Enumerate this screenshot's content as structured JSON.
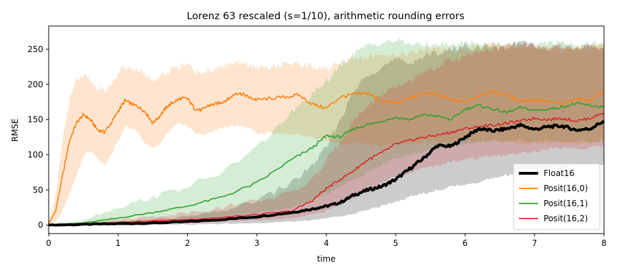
{
  "chart_data": {
    "type": "line",
    "title": "Lorenz 63 rescaled (s=1/10), arithmetic rounding errors",
    "xlabel": "time",
    "ylabel": "RMSE",
    "xlim": [
      0,
      8
    ],
    "ylim": [
      -12,
      283
    ],
    "xticks": [
      0,
      1,
      2,
      3,
      4,
      5,
      6,
      7,
      8
    ],
    "yticks": [
      0,
      50,
      100,
      150,
      200,
      250
    ],
    "grid": false,
    "legend_position": "bottom-right",
    "series": [
      {
        "name": "Float16",
        "color": "#000000",
        "linewidth": "thick",
        "x": [
          0,
          0.5,
          1,
          1.5,
          2,
          2.5,
          3,
          3.5,
          3.8,
          4,
          4.2,
          4.4,
          4.6,
          4.8,
          5,
          5.2,
          5.4,
          5.6,
          5.8,
          6,
          6.2,
          6.4,
          6.6,
          6.8,
          7,
          7.2,
          7.4,
          7.6,
          7.8,
          8
        ],
        "y": [
          0,
          1,
          2,
          3,
          5,
          8,
          12,
          18,
          23,
          27,
          32,
          43,
          50,
          55,
          65,
          80,
          95,
          113,
          112,
          125,
          137,
          134,
          137,
          142,
          136,
          140,
          141,
          135,
          137,
          148
        ],
        "band_low": [
          0,
          0,
          0,
          0,
          1,
          2,
          3,
          5,
          7,
          10,
          13,
          16,
          22,
          28,
          34,
          40,
          45,
          50,
          54,
          58,
          62,
          66,
          70,
          75,
          78,
          80,
          82,
          84,
          85,
          86
        ],
        "band_high": [
          0,
          3,
          5,
          8,
          12,
          20,
          35,
          60,
          85,
          110,
          150,
          190,
          215,
          225,
          235,
          230,
          240,
          245,
          250,
          255,
          250,
          255,
          250,
          260,
          255,
          250,
          255,
          250,
          255,
          250
        ]
      },
      {
        "name": "Posit(16,0)",
        "color": "#ff7f0e",
        "x": [
          0,
          0.1,
          0.2,
          0.3,
          0.4,
          0.5,
          0.6,
          0.7,
          0.8,
          0.9,
          1,
          1.1,
          1.2,
          1.3,
          1.4,
          1.5,
          1.6,
          1.7,
          1.8,
          1.9,
          2,
          2.1,
          2.2,
          2.3,
          2.4,
          2.5,
          2.6,
          2.7,
          2.8,
          2.9,
          3,
          3.2,
          3.4,
          3.6,
          3.8,
          4,
          4.2,
          4.4,
          4.6,
          4.8,
          5,
          5.2,
          5.4,
          5.6,
          5.8,
          6,
          6.2,
          6.4,
          6.6,
          6.8,
          7,
          7.2,
          7.4,
          7.6,
          7.8,
          8
        ],
        "y": [
          2,
          20,
          70,
          120,
          145,
          157,
          150,
          136,
          132,
          145,
          162,
          177,
          172,
          168,
          160,
          145,
          155,
          168,
          175,
          180,
          180,
          166,
          163,
          170,
          172,
          175,
          180,
          188,
          186,
          181,
          178,
          180,
          182,
          185,
          172,
          166,
          182,
          186,
          187,
          176,
          174,
          180,
          188,
          185,
          178,
          175,
          185,
          190,
          185,
          177,
          178,
          175,
          172,
          180,
          177,
          190
        ],
        "band_low": [
          0,
          5,
          20,
          45,
          70,
          100,
          105,
          95,
          85,
          100,
          120,
          140,
          138,
          130,
          115,
          110,
          115,
          130,
          140,
          145,
          140,
          132,
          128,
          130,
          135,
          138,
          140,
          142,
          140,
          138,
          130,
          132,
          130,
          128,
          125,
          118,
          115,
          118,
          115,
          112,
          115,
          115,
          120,
          118,
          118,
          120,
          118,
          120,
          118,
          115,
          118,
          115,
          118,
          115,
          118,
          120
        ],
        "band_high": [
          5,
          40,
          120,
          180,
          205,
          212,
          205,
          195,
          190,
          200,
          215,
          225,
          222,
          218,
          212,
          205,
          210,
          218,
          222,
          226,
          228,
          218,
          215,
          220,
          222,
          225,
          228,
          230,
          228,
          226,
          225,
          225,
          228,
          230,
          225,
          222,
          230,
          235,
          240,
          238,
          240,
          245,
          250,
          250,
          248,
          250,
          255,
          258,
          255,
          250,
          255,
          252,
          250,
          255,
          252,
          255
        ]
      },
      {
        "name": "Posit(16,1)",
        "color": "#2ca02c",
        "x": [
          0,
          0.5,
          1,
          1.5,
          2,
          2.5,
          3,
          3.5,
          3.8,
          4,
          4.2,
          4.4,
          4.6,
          4.8,
          5,
          5.2,
          5.4,
          5.6,
          5.8,
          6,
          6.2,
          6.4,
          6.6,
          6.8,
          7,
          7.2,
          7.4,
          7.6,
          7.8,
          8
        ],
        "y": [
          0,
          3,
          10,
          18,
          27,
          40,
          60,
          93,
          110,
          127,
          125,
          137,
          143,
          148,
          153,
          150,
          157,
          155,
          150,
          165,
          170,
          165,
          160,
          167,
          163,
          165,
          168,
          173,
          170,
          168
        ],
        "band_low": [
          0,
          0,
          2,
          4,
          8,
          12,
          18,
          25,
          35,
          45,
          55,
          65,
          75,
          85,
          95,
          100,
          105,
          110,
          112,
          115,
          118,
          120,
          118,
          120,
          118,
          120,
          118,
          120,
          118,
          120
        ],
        "band_high": [
          0,
          8,
          25,
          40,
          55,
          75,
          110,
          160,
          185,
          205,
          225,
          245,
          255,
          260,
          262,
          258,
          255,
          258,
          255,
          260,
          258,
          255,
          258,
          260,
          255,
          258,
          260,
          255,
          258,
          260
        ]
      },
      {
        "name": "Posit(16,2)",
        "color": "#d62728",
        "x": [
          0,
          0.5,
          1,
          1.5,
          2,
          2.5,
          3,
          3.5,
          3.8,
          4,
          4.2,
          4.4,
          4.6,
          4.8,
          5,
          5.2,
          5.4,
          5.6,
          5.8,
          6,
          6.2,
          6.4,
          6.6,
          6.8,
          7,
          7.2,
          7.4,
          7.6,
          7.8,
          8
        ],
        "y": [
          0,
          2,
          4,
          6,
          8,
          11,
          15,
          20,
          35,
          52,
          65,
          78,
          93,
          103,
          115,
          120,
          125,
          128,
          132,
          137,
          140,
          142,
          145,
          148,
          152,
          150,
          152,
          148,
          152,
          160
        ],
        "band_low": [
          0,
          0,
          1,
          2,
          3,
          5,
          7,
          10,
          15,
          20,
          30,
          40,
          50,
          60,
          70,
          75,
          80,
          85,
          90,
          95,
          95,
          98,
          100,
          102,
          105,
          108,
          110,
          108,
          110,
          112
        ],
        "band_high": [
          0,
          4,
          8,
          12,
          18,
          25,
          35,
          45,
          65,
          90,
          120,
          150,
          170,
          185,
          195,
          205,
          215,
          225,
          235,
          240,
          245,
          250,
          255,
          258,
          255,
          252,
          255,
          250,
          255,
          250
        ]
      }
    ]
  }
}
